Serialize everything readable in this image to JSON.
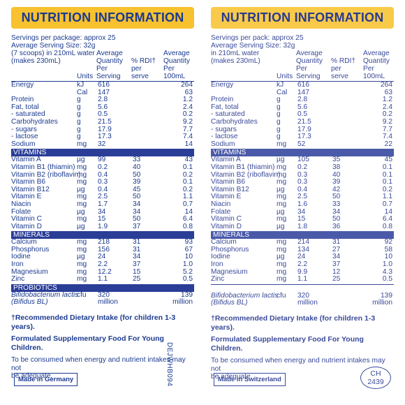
{
  "left": {
    "title": "NUTRITION INFORMATION",
    "servings": [
      "Servings per package: approx 25",
      "Average Serving Size: 32g",
      "(7 scoops) in 210mL water",
      "(makes 230mL)"
    ],
    "header": {
      "units": "Units",
      "per_serving": [
        "Average",
        "Quantity",
        "Per Serving"
      ],
      "rdi": [
        "% RDI†",
        "per serve"
      ],
      "per_100ml": [
        "Average",
        "Quantity",
        "Per 100mL"
      ]
    },
    "rows": [
      {
        "n": "Energy",
        "u": "kJ",
        "s": "616",
        "r": "",
        "p": "264"
      },
      {
        "n": "",
        "u": "Cal",
        "s": "147",
        "r": "",
        "p": "63"
      },
      {
        "n": "Protein",
        "u": "g",
        "s": "2.8",
        "r": "",
        "p": "1.2"
      },
      {
        "n": "Fat, total",
        "u": "g",
        "s": "5.6",
        "r": "",
        "p": "2.4"
      },
      {
        "n": " - saturated",
        "u": "g",
        "s": "0.5",
        "r": "",
        "p": "0.2"
      },
      {
        "n": "Carbohydrates",
        "u": "g",
        "s": "21.5",
        "r": "",
        "p": "9.2"
      },
      {
        "n": " - sugars",
        "u": "g",
        "s": "17.9",
        "r": "",
        "p": "7.7"
      },
      {
        "n": "   - lactose",
        "u": "g",
        "s": "17.3",
        "r": "",
        "p": "7.4"
      },
      {
        "n": "Sodium",
        "u": "mg",
        "s": "32",
        "r": "",
        "p": "14"
      }
    ],
    "vitamins_label": "VITAMINS",
    "vitamins": [
      {
        "n": "Vitamin A",
        "u": "µg",
        "s": "99",
        "r": "33",
        "p": "43"
      },
      {
        "n": "Vitamin B1 (thiamin)",
        "u": "mg",
        "s": "0.2",
        "r": "40",
        "p": "0.1"
      },
      {
        "n": "Vitamin B2 (riboflavin)",
        "u": "mg",
        "s": "0.4",
        "r": "50",
        "p": "0.2"
      },
      {
        "n": "Vitamin B6",
        "u": "mg",
        "s": "0.3",
        "r": "39",
        "p": "0.1"
      },
      {
        "n": "Vitamin B12",
        "u": "µg",
        "s": "0.4",
        "r": "45",
        "p": "0.2"
      },
      {
        "n": "Vitamin E",
        "u": "mg",
        "s": "2.5",
        "r": "50",
        "p": "1.1"
      },
      {
        "n": "Niacin",
        "u": "mg",
        "s": "1.7",
        "r": "34",
        "p": "0.7"
      },
      {
        "n": "Folate",
        "u": "µg",
        "s": "34",
        "r": "34",
        "p": "14"
      },
      {
        "n": "Vitamin C",
        "u": "mg",
        "s": "15",
        "r": "50",
        "p": "6.4"
      },
      {
        "n": "Vitamin D",
        "u": "µg",
        "s": "1.9",
        "r": "37",
        "p": "0.8"
      }
    ],
    "minerals_label": "MINERALS",
    "minerals": [
      {
        "n": "Calcium",
        "u": "mg",
        "s": "218",
        "r": "31",
        "p": "93"
      },
      {
        "n": "Phosphorus",
        "u": "mg",
        "s": "156",
        "r": "31",
        "p": "67"
      },
      {
        "n": "Iodine",
        "u": "µg",
        "s": "24",
        "r": "34",
        "p": "10"
      },
      {
        "n": "Iron",
        "u": "mg",
        "s": "2.2",
        "r": "37",
        "p": "1.0"
      },
      {
        "n": "Magnesium",
        "u": "mg",
        "s": "12.2",
        "r": "15",
        "p": "5.2"
      },
      {
        "n": "Zinc",
        "u": "mg",
        "s": "1.1",
        "r": "25",
        "p": "0.5"
      }
    ],
    "probiotics_label": "PROBIOTICS",
    "probiotic": {
      "n1": "Bifidobacterium lactis",
      "n2": "(Bifidus BL)",
      "u": "cfu",
      "s1": "320",
      "s2": "million",
      "p1": "139",
      "p2": "million"
    },
    "footnote_rdi": "†Recommended Dietary Intake (for children 1-3 years).",
    "footnote_formula": "Formulated Supplementary Food For Young Children.",
    "footnote_consume": [
      "To be consumed when energy and nutrient intakes may not",
      "be adequate."
    ],
    "made_in": "Made in Germany",
    "code": "DEJWHB094"
  },
  "right": {
    "title": "NUTRITION INFORMATION",
    "servings": [
      "Servings per pack: approx 25",
      "Average Serving Size: 32g",
      "in 210mL water",
      "(makes 230mL)"
    ],
    "header": {
      "units": "Units",
      "per_serving": [
        "Average",
        "Quantity",
        "Per Serving"
      ],
      "rdi": [
        "% RDI†",
        "per serve"
      ],
      "per_100ml": [
        "Average",
        "Quantity",
        "Per 100mL"
      ]
    },
    "rows": [
      {
        "n": "Energy",
        "u": "kJ",
        "s": "616",
        "r": "",
        "p": "264"
      },
      {
        "n": "",
        "u": "Cal",
        "s": "147",
        "r": "",
        "p": "63"
      },
      {
        "n": "Protein",
        "u": "g",
        "s": "2.8",
        "r": "",
        "p": "1.2"
      },
      {
        "n": "Fat, total",
        "u": "g",
        "s": "5.6",
        "r": "",
        "p": "2.4"
      },
      {
        "n": " - saturated",
        "u": "g",
        "s": "0.5",
        "r": "",
        "p": "0.2"
      },
      {
        "n": "Carbohydrates",
        "u": "g",
        "s": "21.5",
        "r": "",
        "p": "9.2"
      },
      {
        "n": " - sugars",
        "u": "g",
        "s": "17.9",
        "r": "",
        "p": "7.7"
      },
      {
        "n": "   - lactose",
        "u": "g",
        "s": "17.3",
        "r": "",
        "p": "7.4"
      },
      {
        "n": "Sodium",
        "u": "mg",
        "s": "52",
        "r": "",
        "p": "22"
      }
    ],
    "vitamins_label": "VITAMINS",
    "vitamins": [
      {
        "n": "Vitamin A",
        "u": "µg",
        "s": "105",
        "r": "35",
        "p": "45"
      },
      {
        "n": "Vitamin B1 (thiamin)",
        "u": "mg",
        "s": "0.2",
        "r": "38",
        "p": "0.1"
      },
      {
        "n": "Vitamin B2 (riboflavin)",
        "u": "mg",
        "s": "0.3",
        "r": "40",
        "p": "0.1"
      },
      {
        "n": "Vitamin B6",
        "u": "mg",
        "s": "0.3",
        "r": "39",
        "p": "0.1"
      },
      {
        "n": "Vitamin B12",
        "u": "µg",
        "s": "0.4",
        "r": "42",
        "p": "0.2"
      },
      {
        "n": "Vitamin E",
        "u": "mg",
        "s": "2.5",
        "r": "50",
        "p": "1.1"
      },
      {
        "n": "Niacin",
        "u": "mg",
        "s": "1.6",
        "r": "33",
        "p": "0.7"
      },
      {
        "n": "Folate",
        "u": "µg",
        "s": "34",
        "r": "34",
        "p": "14"
      },
      {
        "n": "Vitamin C",
        "u": "mg",
        "s": "15",
        "r": "50",
        "p": "6.4"
      },
      {
        "n": "Vitamin D",
        "u": "µg",
        "s": "1.8",
        "r": "36",
        "p": "0.8"
      }
    ],
    "minerals_label": "MINERALS",
    "minerals": [
      {
        "n": "Calcium",
        "u": "mg",
        "s": "214",
        "r": "31",
        "p": "92"
      },
      {
        "n": "Phosphorus",
        "u": "mg",
        "s": "134",
        "r": "27",
        "p": "58"
      },
      {
        "n": "Iodine",
        "u": "µg",
        "s": "24",
        "r": "34",
        "p": "10"
      },
      {
        "n": "Iron",
        "u": "mg",
        "s": "2.2",
        "r": "37",
        "p": "1.0"
      },
      {
        "n": "Magnesium",
        "u": "mg",
        "s": "9.9",
        "r": "12",
        "p": "4.3"
      },
      {
        "n": "Zinc",
        "u": "mg",
        "s": "1.1",
        "r": "25",
        "p": "0.5"
      }
    ],
    "probiotic": {
      "n1": "Bifidobacterium lactis",
      "n2": "(Bifidus BL)",
      "u": "cfu",
      "s1": "320",
      "s2": "million",
      "p1": "139",
      "p2": "million"
    },
    "footnote_rdi": "†Recommended Dietary Intake (for children 1-3 years).",
    "footnote_formula": "Formulated Supplementary Food For Young Children.",
    "footnote_consume": [
      "To be consumed when energy and nutrient intakes may not",
      "be adequate."
    ],
    "made_in": "Made in Switzerland",
    "oval_code": [
      "CH",
      "2439"
    ]
  }
}
